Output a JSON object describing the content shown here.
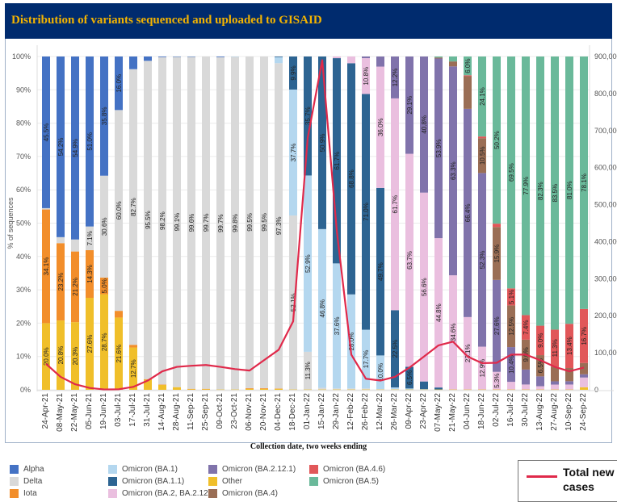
{
  "title": "Distribution of variants sequenced and uploaded to GISAID",
  "chart_data": {
    "type": "bar",
    "stacked": true,
    "normalized": true,
    "title": "Distribution of variants sequenced and uploaded to GISAID",
    "xlabel": "Collection date, two weeks ending",
    "ylabel": "% of sequences",
    "y2label": "Total new cases",
    "ylim": [
      0,
      100
    ],
    "y2lim": [
      0,
      900000
    ],
    "yticks": [
      "0%",
      "10%",
      "20%",
      "30%",
      "40%",
      "50%",
      "60%",
      "70%",
      "80%",
      "90%",
      "100%"
    ],
    "y2ticks": [
      "0",
      "100,000",
      "200,000",
      "300,000",
      "400,000",
      "500,000",
      "600,000",
      "700,000",
      "800,000",
      "900,000"
    ],
    "categories": [
      "24-Apr-21",
      "08-May-21",
      "22-May-21",
      "05-Jun-21",
      "19-Jun-21",
      "03-Jul-21",
      "17-Jul-21",
      "31-Jul-21",
      "14-Aug-21",
      "28-Aug-21",
      "11-Sep-21",
      "25-Sep-21",
      "09-Oct-21",
      "23-Oct-21",
      "06-Nov-21",
      "20-Nov-21",
      "04-Dec-21",
      "18-Dec-21",
      "01-Jan-22",
      "15-Jan-22",
      "29-Jan-22",
      "12-Feb-22",
      "26-Feb-22",
      "12-Mar-22",
      "26-Mar-22",
      "09-Apr-22",
      "23-Apr-22",
      "07-May-22",
      "21-May-22",
      "04-Jun-22",
      "18-Jun-22",
      "02-Jul-22",
      "16-Jul-22",
      "30-Jul-22",
      "13-Aug-22",
      "27-Aug-22",
      "10-Sep-22",
      "24-Sep-22"
    ],
    "series": [
      {
        "name": "Other",
        "color": "#f0bf2a",
        "values": [
          20.0,
          20.8,
          20.3,
          27.6,
          28.7,
          21.6,
          12.7,
          3.0,
          1.5,
          0.8,
          0.2,
          0.2,
          0.1,
          0.1,
          0.3,
          0.3,
          0.3,
          0.1,
          0.1,
          0.1,
          0.1,
          0.1,
          0.1,
          0.1,
          0.1,
          0.1,
          0.1,
          0.1,
          0.1,
          0.1,
          0.1,
          0.1,
          0.1,
          0.1,
          0.1,
          0.1,
          0.1,
          0.8
        ]
      },
      {
        "name": "Iota",
        "color": "#f28e2b",
        "values": [
          34.1,
          23.2,
          21.2,
          14.3,
          5.0,
          2.0,
          0.8,
          0.2,
          0.1,
          0,
          0.1,
          0.1,
          0,
          0,
          0.2,
          0.2,
          0.1,
          0,
          0,
          0,
          0,
          0,
          0,
          0,
          0,
          0,
          0,
          0,
          0,
          0,
          0,
          0,
          0,
          0,
          0,
          0,
          0,
          0
        ]
      },
      {
        "name": "Delta",
        "color": "#d9d9d9",
        "values": [
          0.4,
          1.8,
          3.6,
          7.1,
          30.6,
          60.0,
          82.7,
          95.5,
          98.2,
          99.1,
          99.6,
          99.7,
          99.7,
          99.8,
          99.5,
          99.5,
          97.3,
          52.1,
          11.3,
          0.5,
          0.3,
          0.3,
          0.3,
          0.1,
          0.1,
          0,
          0,
          0,
          0,
          0,
          0,
          0,
          0,
          0,
          0,
          0,
          0,
          0
        ]
      },
      {
        "name": "Alpha",
        "color": "#4472c4",
        "values": [
          45.5,
          54.2,
          54.9,
          51.0,
          35.8,
          16.0,
          3.8,
          1.3,
          0.2,
          0.1,
          0.1,
          0,
          0.2,
          0,
          0,
          0,
          0,
          0,
          0,
          0,
          0,
          0,
          0,
          0,
          0,
          0,
          0,
          0,
          0,
          0,
          0,
          0,
          0,
          0,
          0,
          0,
          0,
          0
        ]
      },
      {
        "name": "Omicron (BA.1)",
        "color": "#b4d7ef",
        "values": [
          0,
          0,
          0,
          0,
          0,
          0,
          0,
          0,
          0,
          0,
          0,
          0,
          0,
          0.1,
          0,
          0,
          1.8,
          37.7,
          52.9,
          46.8,
          37.6,
          28.0,
          17.7,
          10.0,
          0.5,
          0.3,
          0.1,
          0,
          0,
          0,
          0,
          0,
          0,
          0,
          0,
          0,
          0,
          0
        ]
      },
      {
        "name": "Omicron (BA.1.1)",
        "color": "#2d6492",
        "values": [
          0,
          0,
          0,
          0,
          0,
          0,
          0,
          0,
          0,
          0,
          0,
          0,
          0,
          0,
          0,
          0,
          0.2,
          9.9,
          35.7,
          50.9,
          61.7,
          68.8,
          71.0,
          49.7,
          22.5,
          6.5,
          2.3,
          0.6,
          0,
          0,
          0,
          0,
          0,
          0,
          0,
          0,
          0,
          0
        ]
      },
      {
        "name": "Omicron (BA.2, BA.2.12)",
        "color": "#eabfdf",
        "values": [
          0,
          0,
          0,
          0,
          0,
          0,
          0,
          0,
          0,
          0,
          0,
          0,
          0,
          0,
          0,
          0,
          0,
          0,
          0,
          0,
          0.5,
          2.0,
          10.8,
          36.0,
          61.7,
          63.7,
          56.6,
          44.8,
          34.6,
          23.1,
          12.9,
          5.3,
          2.3,
          1.5,
          1.0,
          1.5,
          1.5,
          3.0
        ]
      },
      {
        "name": "Omicron (BA.2.12.1)",
        "color": "#8073ab",
        "values": [
          0,
          0,
          0,
          0,
          0,
          0,
          0,
          0,
          0,
          0,
          0,
          0,
          0,
          0,
          0,
          0,
          0,
          0,
          0,
          0,
          0,
          0,
          0.5,
          3.0,
          12.2,
          29.1,
          40.8,
          53.9,
          63.3,
          66.4,
          52.3,
          27.6,
          10.4,
          4.5,
          3.0,
          1.0,
          1.0,
          1.0
        ]
      },
      {
        "name": "Omicron (BA.4)",
        "color": "#9a6e55",
        "values": [
          0,
          0,
          0,
          0,
          0,
          0,
          0,
          0,
          0,
          0,
          0,
          0,
          0,
          0,
          0,
          0,
          0,
          0,
          0,
          0,
          0,
          0,
          0,
          0,
          0,
          0,
          0,
          0.3,
          1.5,
          10.4,
          10.5,
          15.9,
          12.5,
          9.0,
          6.5,
          4.5,
          4.0,
          3.5
        ]
      },
      {
        "name": "Omicron (BA.4.6)",
        "color": "#e15759",
        "values": [
          0,
          0,
          0,
          0,
          0,
          0,
          0,
          0,
          0,
          0,
          0,
          0,
          0,
          0,
          0,
          0,
          0,
          0,
          0,
          0,
          0,
          0,
          0,
          0,
          0,
          0,
          0,
          0,
          0,
          0.3,
          0.5,
          1.0,
          5.1,
          7.4,
          9.0,
          11.3,
          13.4,
          16.7
        ]
      },
      {
        "name": "Omicron (BA.5)",
        "color": "#6ab99a",
        "values": [
          0,
          0,
          0,
          0,
          0,
          0,
          0,
          0,
          0,
          0,
          0,
          0,
          0,
          0,
          0,
          0,
          0,
          0,
          0,
          0,
          0,
          0,
          0,
          0,
          0,
          0,
          0,
          0.3,
          1.5,
          6.0,
          24.1,
          50.2,
          69.5,
          77.9,
          82.3,
          83.5,
          81.0,
          78.1
        ]
      }
    ],
    "labels": [
      {
        "series": "Other",
        "values": [
          20.0,
          20.8,
          20.3,
          27.6,
          28.7,
          21.6,
          12.7,
          null,
          null,
          null,
          null,
          null,
          null,
          null,
          null,
          null,
          null,
          null,
          null,
          null,
          null,
          null,
          null,
          null,
          null,
          null,
          null,
          null,
          null,
          null,
          null,
          null,
          null,
          null,
          null,
          null,
          null,
          null
        ]
      },
      {
        "series": "Iota",
        "values": [
          34.1,
          23.2,
          21.2,
          14.3,
          5.0,
          null,
          null,
          null,
          null,
          null,
          null,
          null,
          null,
          null,
          null,
          null,
          null,
          null,
          null,
          null,
          null,
          null,
          null,
          null,
          null,
          null,
          null,
          null,
          null,
          null,
          null,
          null,
          null,
          null,
          null,
          null,
          null,
          null
        ]
      },
      {
        "series": "Delta",
        "values": [
          null,
          null,
          null,
          7.1,
          30.6,
          60.0,
          82.7,
          95.5,
          98.2,
          99.1,
          99.6,
          99.7,
          99.7,
          99.8,
          99.5,
          99.5,
          97.3,
          52.1,
          11.3,
          null,
          null,
          null,
          null,
          null,
          null,
          null,
          null,
          null,
          null,
          null,
          null,
          null,
          null,
          null,
          null,
          null,
          null,
          null
        ]
      },
      {
        "series": "Alpha",
        "values": [
          45.5,
          54.2,
          54.9,
          51.0,
          35.8,
          16.0,
          null,
          null,
          null,
          null,
          null,
          null,
          null,
          null,
          null,
          null,
          null,
          null,
          null,
          null,
          null,
          null,
          null,
          null,
          null,
          null,
          null,
          null,
          null,
          null,
          null,
          null,
          null,
          null,
          null,
          null,
          null,
          null
        ]
      },
      {
        "series": "Omicron (BA.1)",
        "values": [
          null,
          null,
          null,
          null,
          null,
          null,
          null,
          null,
          null,
          null,
          null,
          null,
          null,
          null,
          null,
          null,
          null,
          37.7,
          52.9,
          46.8,
          37.6,
          28.0,
          17.7,
          10.0,
          null,
          null,
          null,
          null,
          null,
          null,
          null,
          null,
          null,
          null,
          null,
          null,
          null,
          null
        ]
      },
      {
        "series": "Omicron (BA.1.1)",
        "values": [
          null,
          null,
          null,
          null,
          null,
          null,
          null,
          null,
          null,
          null,
          null,
          null,
          null,
          null,
          null,
          null,
          null,
          9.9,
          35.7,
          50.9,
          61.7,
          68.8,
          71.0,
          49.7,
          22.5,
          6.5,
          null,
          null,
          null,
          null,
          null,
          null,
          null,
          null,
          null,
          null,
          null,
          null
        ]
      },
      {
        "series": "Omicron (BA.2, BA.2.12)",
        "values": [
          null,
          null,
          null,
          null,
          null,
          null,
          null,
          null,
          null,
          null,
          null,
          null,
          null,
          null,
          null,
          null,
          null,
          null,
          null,
          null,
          null,
          null,
          10.8,
          36.0,
          61.7,
          63.7,
          56.6,
          44.8,
          34.6,
          23.1,
          12.9,
          5.3,
          null,
          null,
          null,
          null,
          null,
          null
        ]
      },
      {
        "series": "Omicron (BA.2.12.1)",
        "values": [
          null,
          null,
          null,
          null,
          null,
          null,
          null,
          null,
          null,
          null,
          null,
          null,
          null,
          null,
          null,
          null,
          null,
          null,
          null,
          null,
          null,
          null,
          null,
          null,
          12.2,
          29.1,
          40.8,
          53.9,
          63.3,
          66.4,
          52.3,
          27.6,
          10.4,
          null,
          null,
          null,
          null,
          null
        ]
      },
      {
        "series": "Omicron (BA.4)",
        "values": [
          null,
          null,
          null,
          null,
          null,
          null,
          null,
          null,
          null,
          null,
          null,
          null,
          null,
          null,
          null,
          null,
          null,
          null,
          null,
          null,
          null,
          null,
          null,
          null,
          null,
          null,
          null,
          null,
          null,
          null,
          10.5,
          15.9,
          12.5,
          9.0,
          6.5,
          null,
          null,
          null
        ]
      },
      {
        "series": "Omicron (BA.4.6)",
        "values": [
          null,
          null,
          null,
          null,
          null,
          null,
          null,
          null,
          null,
          null,
          null,
          null,
          null,
          null,
          null,
          null,
          null,
          null,
          null,
          null,
          null,
          null,
          null,
          null,
          null,
          null,
          null,
          null,
          null,
          null,
          null,
          null,
          5.1,
          7.4,
          9.0,
          11.3,
          13.4,
          16.7
        ]
      },
      {
        "series": "Omicron (BA.5)",
        "values": [
          null,
          null,
          null,
          null,
          null,
          null,
          null,
          null,
          null,
          null,
          null,
          null,
          null,
          null,
          null,
          null,
          null,
          null,
          null,
          null,
          null,
          null,
          null,
          null,
          null,
          null,
          null,
          null,
          null,
          6.0,
          24.1,
          50.2,
          69.5,
          77.9,
          82.3,
          83.5,
          81.0,
          78.1
        ]
      }
    ],
    "line": {
      "name": "Total new cases",
      "color": "#e0294a",
      "axis": "right",
      "values": [
        70000,
        35000,
        15000,
        5000,
        1000,
        1500,
        8000,
        25000,
        50000,
        62000,
        65000,
        67000,
        62000,
        56000,
        52000,
        80000,
        108000,
        185000,
        680000,
        890000,
        430000,
        95000,
        30000,
        25000,
        35000,
        60000,
        90000,
        120000,
        130000,
        90000,
        72000,
        73000,
        95000,
        95000,
        80000,
        62000,
        50000,
        60000
      ]
    },
    "grid": true,
    "legend_position": "bottom"
  },
  "legend": {
    "columns": [
      [
        "Alpha",
        "Delta",
        "Iota"
      ],
      [
        "Omicron (BA.1)",
        "Omicron (BA.1.1)",
        "Omicron (BA.2, BA.2.12)"
      ],
      [
        "Omicron (BA.2.12.1)",
        "Other",
        "Omicron (BA.4)"
      ],
      [
        "Omicron (BA.4.6)",
        "Omicron (BA.5)"
      ]
    ],
    "line_label": "Total new cases"
  }
}
